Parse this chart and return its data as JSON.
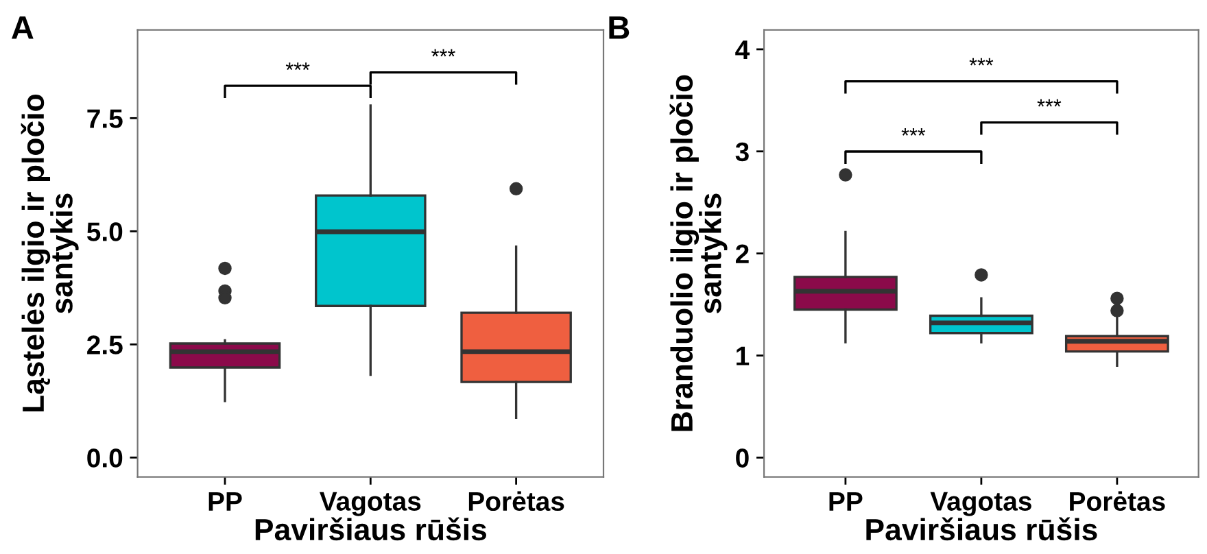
{
  "chart_data": [
    {
      "type": "box",
      "title": "A",
      "xlabel": "Paviršiaus rūšis",
      "ylabel": "Ląstelės ilgio ir pločio\nsantykis",
      "categories": [
        "PP",
        "Vagotas",
        "Porėtas"
      ],
      "colors": [
        "#8b0a4a",
        "#00c5cd",
        "#ef5f40"
      ],
      "boxes": [
        {
          "low": 1.25,
          "q1": 1.99,
          "median": 2.34,
          "q3": 2.52,
          "high": 2.59,
          "outliers": [
            4.18,
            3.68,
            3.53
          ]
        },
        {
          "low": 1.83,
          "q1": 3.35,
          "median": 4.99,
          "q3": 5.79,
          "high": 7.78
        },
        {
          "low": 0.88,
          "q1": 1.67,
          "median": 2.34,
          "q3": 3.2,
          "high": 4.66,
          "outliers": [
            5.94
          ]
        }
      ],
      "ylim": [
        -0.43,
        9.45
      ],
      "yticks": [
        {
          "value": 0,
          "label": "0.0"
        },
        2.5,
        {
          "value": 5,
          "label": "5.0"
        },
        7.5
      ],
      "grid": false,
      "annotations": [
        "***",
        "***"
      ]
    },
    {
      "type": "box",
      "title": "B",
      "xlabel": "Paviršiaus rūšis",
      "ylabel": "Branduolio ilgio ir pločio\nsantykis",
      "categories": [
        "PP",
        "Vagotas",
        "Porėtas"
      ],
      "colors": [
        "#8b0a4a",
        "#00c5cd",
        "#ef5f40"
      ],
      "boxes": [
        {
          "low": 1.13,
          "q1": 1.45,
          "median": 1.63,
          "q3": 1.77,
          "high": 2.21,
          "outliers": [
            2.77
          ]
        },
        {
          "low": 1.13,
          "q1": 1.22,
          "median": 1.32,
          "q3": 1.39,
          "high": 1.56,
          "outliers": [
            1.79
          ]
        },
        {
          "low": 0.9,
          "q1": 1.04,
          "median": 1.14,
          "q3": 1.19,
          "high": 1.37,
          "outliers": [
            1.44,
            1.56
          ]
        }
      ],
      "ylim": [
        -0.19,
        4.19
      ],
      "yticks": [
        0,
        1,
        2,
        3,
        4
      ],
      "grid": false,
      "annotations": [
        "***",
        "***",
        "***"
      ]
    }
  ]
}
